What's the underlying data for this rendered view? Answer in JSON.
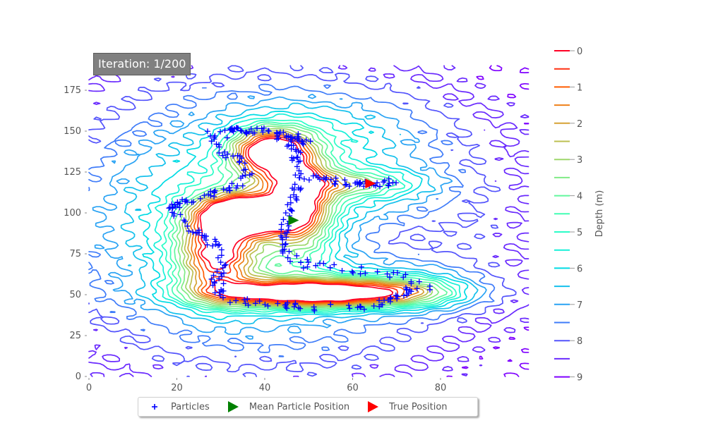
{
  "chart_data": {
    "type": "contour",
    "xlabel": "",
    "ylabel": "",
    "xlim": [
      0,
      100
    ],
    "ylim": [
      0,
      190
    ],
    "xticks": [
      0,
      20,
      40,
      60,
      80
    ],
    "yticks": [
      0,
      25,
      50,
      75,
      100,
      125,
      150,
      175
    ],
    "grid": false,
    "colorbar": {
      "label": "Depth (m)",
      "ticks": [
        "0",
        "1",
        "2",
        "3",
        "4",
        "5",
        "6",
        "7",
        "8",
        "9"
      ],
      "levels": [
        0,
        0.5,
        1,
        1.5,
        2,
        2.5,
        3,
        3.5,
        4,
        4.5,
        5,
        5.5,
        6,
        6.5,
        7,
        7.5,
        8,
        8.5,
        9
      ],
      "colors": [
        "#7f00ff",
        "#6a2afe",
        "#5454fc",
        "#3f7cf9",
        "#2aa3f4",
        "#14c0ec",
        "#00dbe4",
        "#16f0d8",
        "#2bfcc7",
        "#42fdb3",
        "#62f79d",
        "#80eb85",
        "#9ed76b",
        "#bcbf50",
        "#d6a235",
        "#ee8019",
        "#ff5b00",
        "#ff3012",
        "#ff0024"
      ]
    },
    "contour_source": {
      "basins": [
        {
          "x": 36,
          "y": 99,
          "sx": 7,
          "sy": 8,
          "depth": 8.8
        },
        {
          "x": 52,
          "y": 51,
          "sx": 17,
          "sy": 6,
          "depth": 9.0
        },
        {
          "x": 41,
          "y": 137,
          "sx": 6,
          "sy": 10,
          "depth": 7.2
        },
        {
          "x": 29,
          "y": 75,
          "sx": 6,
          "sy": 18,
          "depth": 6.0
        },
        {
          "x": 48,
          "y": 107,
          "sx": 5,
          "sy": 20,
          "depth": 5.6
        },
        {
          "x": 60,
          "y": 118,
          "sx": 11,
          "sy": 6,
          "depth": 3.0
        },
        {
          "x": 40,
          "y": 95,
          "sx": 29,
          "sy": 52,
          "depth": 4.4
        },
        {
          "x": 75,
          "y": 53,
          "sx": 9,
          "sy": 9,
          "depth": 2.2
        },
        {
          "x": 55,
          "y": 150,
          "sx": 16,
          "sy": 14,
          "depth": 1.2
        },
        {
          "x": 66,
          "y": 85,
          "sx": 12,
          "sy": 12,
          "depth": -1.6
        }
      ]
    },
    "series": [
      {
        "name": "Particles",
        "type": "scatter",
        "marker": "+",
        "color": "#0000ff",
        "segments": [
          {
            "points": [
              [
                29,
                146
              ],
              [
                32,
                150
              ],
              [
                35,
                150
              ],
              [
                38,
                150
              ],
              [
                41,
                150
              ],
              [
                44,
                148
              ],
              [
                47,
                146
              ],
              [
                50,
                143
              ]
            ],
            "count": 60
          },
          {
            "points": [
              [
                28,
                148
              ],
              [
                29,
                140
              ],
              [
                32,
                136
              ],
              [
                36,
                128
              ],
              [
                37,
                122
              ],
              [
                34,
                118
              ],
              [
                30,
                113
              ],
              [
                26,
                110
              ],
              [
                22,
                107
              ],
              [
                19,
                105
              ]
            ],
            "count": 55
          },
          {
            "points": [
              [
                19,
                105
              ],
              [
                21,
                96
              ],
              [
                24,
                90
              ],
              [
                27,
                85
              ],
              [
                29,
                80
              ],
              [
                30,
                74
              ],
              [
                30,
                66
              ],
              [
                29,
                58
              ],
              [
                30,
                50
              ]
            ],
            "count": 55
          },
          {
            "points": [
              [
                30,
                50
              ],
              [
                34,
                46
              ],
              [
                40,
                44
              ],
              [
                50,
                42
              ],
              [
                60,
                42
              ],
              [
                68,
                45
              ],
              [
                73,
                52
              ],
              [
                77,
                54
              ]
            ],
            "count": 60
          },
          {
            "points": [
              [
                44,
                147
              ],
              [
                47,
                138
              ],
              [
                48,
                130
              ],
              [
                48,
                122
              ],
              [
                47,
                114
              ],
              [
                46,
                106
              ],
              [
                45,
                98
              ],
              [
                45,
                90
              ],
              [
                44,
                82
              ],
              [
                45,
                74
              ],
              [
                50,
                68
              ],
              [
                58,
                66
              ],
              [
                66,
                64
              ],
              [
                72,
                60
              ],
              [
                76,
                55
              ]
            ],
            "count": 95
          },
          {
            "points": [
              [
                50,
                122
              ],
              [
                54,
                120
              ],
              [
                58,
                119
              ],
              [
                62,
                118
              ],
              [
                66,
                118
              ],
              [
                70,
                119
              ]
            ],
            "count": 40
          }
        ]
      },
      {
        "name": "Mean Particle Position",
        "type": "marker",
        "marker": "triangle-right",
        "color": "#008000",
        "x": 46.5,
        "y": 95.5
      },
      {
        "name": "True Position",
        "type": "marker",
        "marker": "triangle-right",
        "color": "#ff0000",
        "x": 64,
        "y": 118
      }
    ],
    "legend": {
      "placement": "bottom-center",
      "entries": [
        {
          "label": "Particles",
          "marker": "+",
          "color": "#0000ff"
        },
        {
          "label": "Mean Particle Position",
          "marker": "triangle-right",
          "color": "#008000"
        },
        {
          "label": "True Position",
          "marker": "triangle-right",
          "color": "#ff0000"
        }
      ]
    }
  },
  "iteration_box": {
    "text": "Iteration: 1/200"
  }
}
